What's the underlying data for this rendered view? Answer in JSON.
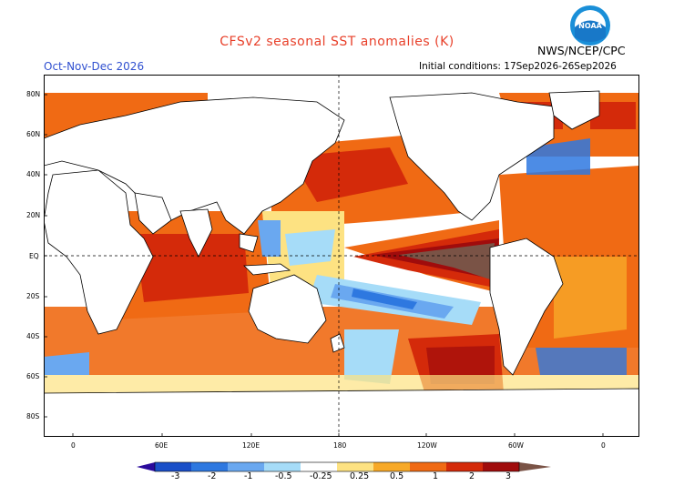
{
  "header": {
    "title": "CFSv2 seasonal SST anomalies (K)",
    "season": "Oct-Nov-Dec 2026",
    "initial_conditions": "Initial conditions: 17Sep2026-26Sep2026",
    "agency": "NWS/NCEP/CPC"
  },
  "logo": {
    "icon": "noaa-logo-icon",
    "text": "NOAA"
  },
  "axes": {
    "y_labels": [
      "80N",
      "60N",
      "40N",
      "20N",
      "EQ",
      "20S",
      "40S",
      "60S",
      "80S"
    ],
    "x_labels": [
      "0",
      "60E",
      "120E",
      "180",
      "120W",
      "60W",
      "0"
    ]
  },
  "colorbar": {
    "labels": [
      "-3",
      "-2",
      "-1",
      "-0.5",
      "-0.25",
      "0.25",
      "0.5",
      "1",
      "2",
      "3"
    ],
    "colors": [
      "#2a0a9c",
      "#1a4fc8",
      "#2e78e0",
      "#6aa8f0",
      "#a6dcf8",
      "#ffffff",
      "#fde282",
      "#f7a928",
      "#f06a14",
      "#d42a0a",
      "#a00c0c",
      "#7a5346"
    ]
  },
  "palette": {
    "ocean_neutral": "#ffffff",
    "land": "#ffffff",
    "coast": "#000000",
    "warm_extreme": "#7a5346",
    "warm_strong": "#a00c0c",
    "warm_mod": "#d42a0a",
    "warm": "#f06a14",
    "warm_light": "#f7a928",
    "warm_faint": "#fde282",
    "cool_faint": "#a6dcf8",
    "cool": "#6aa8f0",
    "cool_mod": "#2e78e0"
  }
}
